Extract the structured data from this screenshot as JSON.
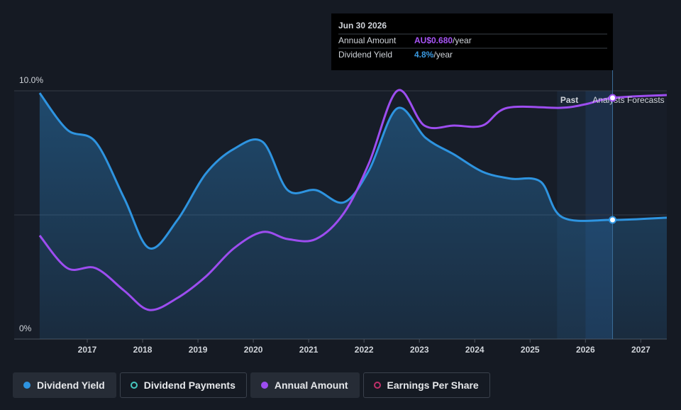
{
  "chart_data": {
    "type": "line",
    "ylim": [
      0,
      10
    ],
    "yticks": [
      {
        "value": 0,
        "label": "0%"
      },
      {
        "value": 5,
        "label": null
      },
      {
        "value": 10,
        "label": "10.0%"
      }
    ],
    "y2lim": [
      0,
      0.7
    ],
    "xlim": [
      2015.68,
      2027.47
    ],
    "xticks": [
      2017,
      2018,
      2019,
      2020,
      2021,
      2022,
      2023,
      2024,
      2025,
      2026,
      2027
    ],
    "grid": true,
    "forecast_start": 2026,
    "past_label": "Past",
    "forecast_label": "Analysts Forecasts",
    "series": [
      {
        "name": "Dividend Yield",
        "color": "#2e94e0",
        "x": [
          2016.14,
          2016.64,
          2017.15,
          2017.67,
          2018.12,
          2018.63,
          2019.14,
          2019.65,
          2020.17,
          2020.62,
          2021.13,
          2021.64,
          2022.09,
          2022.6,
          2023.12,
          2023.63,
          2024.14,
          2024.65,
          2025.19,
          2025.58,
          2026.49,
          2027.47
        ],
        "values": [
          9.91,
          8.43,
          7.94,
          5.66,
          3.66,
          4.8,
          6.66,
          7.66,
          7.94,
          6.0,
          6.0,
          5.51,
          6.8,
          9.29,
          8.09,
          7.43,
          6.74,
          6.46,
          6.34,
          4.91,
          4.8,
          4.89
        ]
      },
      {
        "name": "Annual Amount",
        "color": "#9d4df0",
        "axis": "y2",
        "x": [
          2016.14,
          2016.64,
          2017.15,
          2017.67,
          2018.12,
          2018.63,
          2019.14,
          2019.65,
          2020.17,
          2020.62,
          2021.13,
          2021.64,
          2022.09,
          2022.6,
          2023.09,
          2023.63,
          2024.14,
          2024.59,
          2025.55,
          2026.0,
          2026.49,
          2027.47
        ],
        "values": [
          0.292,
          0.2,
          0.2,
          0.136,
          0.082,
          0.116,
          0.176,
          0.256,
          0.302,
          0.282,
          0.282,
          0.356,
          0.496,
          0.7,
          0.602,
          0.602,
          0.602,
          0.652,
          0.652,
          0.662,
          0.68,
          0.688
        ]
      }
    ],
    "tooltip": {
      "x": 2026.49,
      "date": "Jun 30 2026",
      "rows": [
        {
          "label": "Annual Amount",
          "value": "AU$0.680",
          "unit": "/year",
          "color": "#a855f7"
        },
        {
          "label": "Dividend Yield",
          "value": "4.8%",
          "unit": "/year",
          "color": "#3b9ae1"
        }
      ]
    },
    "legend": [
      {
        "name": "Dividend Yield",
        "color": "#2e94e0",
        "filled": true,
        "active": true
      },
      {
        "name": "Dividend Payments",
        "color": "#46c8c0",
        "filled": false,
        "active": false
      },
      {
        "name": "Annual Amount",
        "color": "#9d4df0",
        "filled": true,
        "active": true
      },
      {
        "name": "Earnings Per Share",
        "color": "#c0306a",
        "filled": false,
        "active": false
      }
    ]
  }
}
